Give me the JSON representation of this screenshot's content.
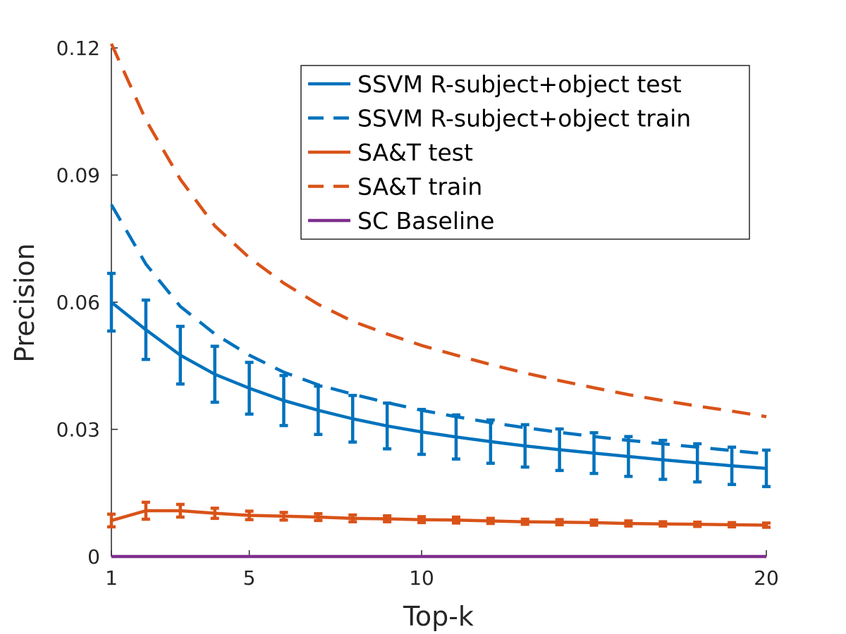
{
  "chart_data": {
    "type": "line",
    "xlabel": "Top-k",
    "ylabel": "Precision",
    "xlim": [
      1,
      20
    ],
    "ylim": [
      0,
      0.12
    ],
    "xticks": [
      1,
      5,
      10,
      20
    ],
    "xtick_labels": [
      "1",
      "5",
      "10",
      "20"
    ],
    "yticks": [
      0,
      0.03,
      0.06,
      0.09,
      0.12
    ],
    "ytick_labels": [
      "0",
      "0.03",
      "0.06",
      "0.09",
      "0.12"
    ],
    "grid": false,
    "legend_position": "top-right",
    "x": [
      1,
      2,
      3,
      4,
      5,
      6,
      7,
      8,
      9,
      10,
      11,
      12,
      13,
      14,
      15,
      16,
      17,
      18,
      19,
      20
    ],
    "series": [
      {
        "name": "SSVM R-subject+object test",
        "color": "#0072BD",
        "style": "solid",
        "values": [
          0.06,
          0.0535,
          0.0475,
          0.043,
          0.0397,
          0.0368,
          0.0345,
          0.0325,
          0.0308,
          0.0294,
          0.0282,
          0.0271,
          0.0261,
          0.0252,
          0.0244,
          0.0236,
          0.0228,
          0.0221,
          0.0214,
          0.0208
        ],
        "error": [
          0.0068,
          0.007,
          0.0068,
          0.0066,
          0.0061,
          0.0059,
          0.0057,
          0.0055,
          0.0054,
          0.0053,
          0.0052,
          0.0051,
          0.005,
          0.0049,
          0.0048,
          0.0047,
          0.0046,
          0.0045,
          0.0044,
          0.0043
        ]
      },
      {
        "name": "SSVM R-subject+object train",
        "color": "#0072BD",
        "style": "dashed",
        "values": [
          0.083,
          0.069,
          0.059,
          0.0525,
          0.0475,
          0.0435,
          0.0405,
          0.0383,
          0.0363,
          0.0345,
          0.033,
          0.0316,
          0.0304,
          0.0293,
          0.0283,
          0.0274,
          0.0266,
          0.0258,
          0.025,
          0.0242
        ]
      },
      {
        "name": "SA&T test",
        "color": "#D95319",
        "style": "solid",
        "values": [
          0.0085,
          0.0108,
          0.0108,
          0.0102,
          0.0097,
          0.0095,
          0.0093,
          0.009,
          0.0089,
          0.0087,
          0.0086,
          0.0084,
          0.0082,
          0.0081,
          0.008,
          0.0078,
          0.0077,
          0.0076,
          0.0075,
          0.0074
        ],
        "error": [
          0.0015,
          0.002,
          0.0015,
          0.0012,
          0.001,
          0.0009,
          0.0008,
          0.0008,
          0.0007,
          0.0007,
          0.0007,
          0.0006,
          0.0006,
          0.0006,
          0.0006,
          0.0006,
          0.0005,
          0.0005,
          0.0005,
          0.0005
        ]
      },
      {
        "name": "SA&T train",
        "color": "#D95319",
        "style": "dashed",
        "values": [
          0.121,
          0.103,
          0.089,
          0.078,
          0.0705,
          0.0645,
          0.0595,
          0.0555,
          0.0525,
          0.0498,
          0.0475,
          0.0453,
          0.0433,
          0.0415,
          0.0398,
          0.0382,
          0.0368,
          0.0355,
          0.0343,
          0.033
        ]
      },
      {
        "name": "SC Baseline",
        "color": "#7E2F8E",
        "style": "solid",
        "values": [
          0,
          0,
          0,
          0,
          0,
          0,
          0,
          0,
          0,
          0,
          0,
          0,
          0,
          0,
          0,
          0,
          0,
          0,
          0,
          0
        ]
      }
    ]
  }
}
